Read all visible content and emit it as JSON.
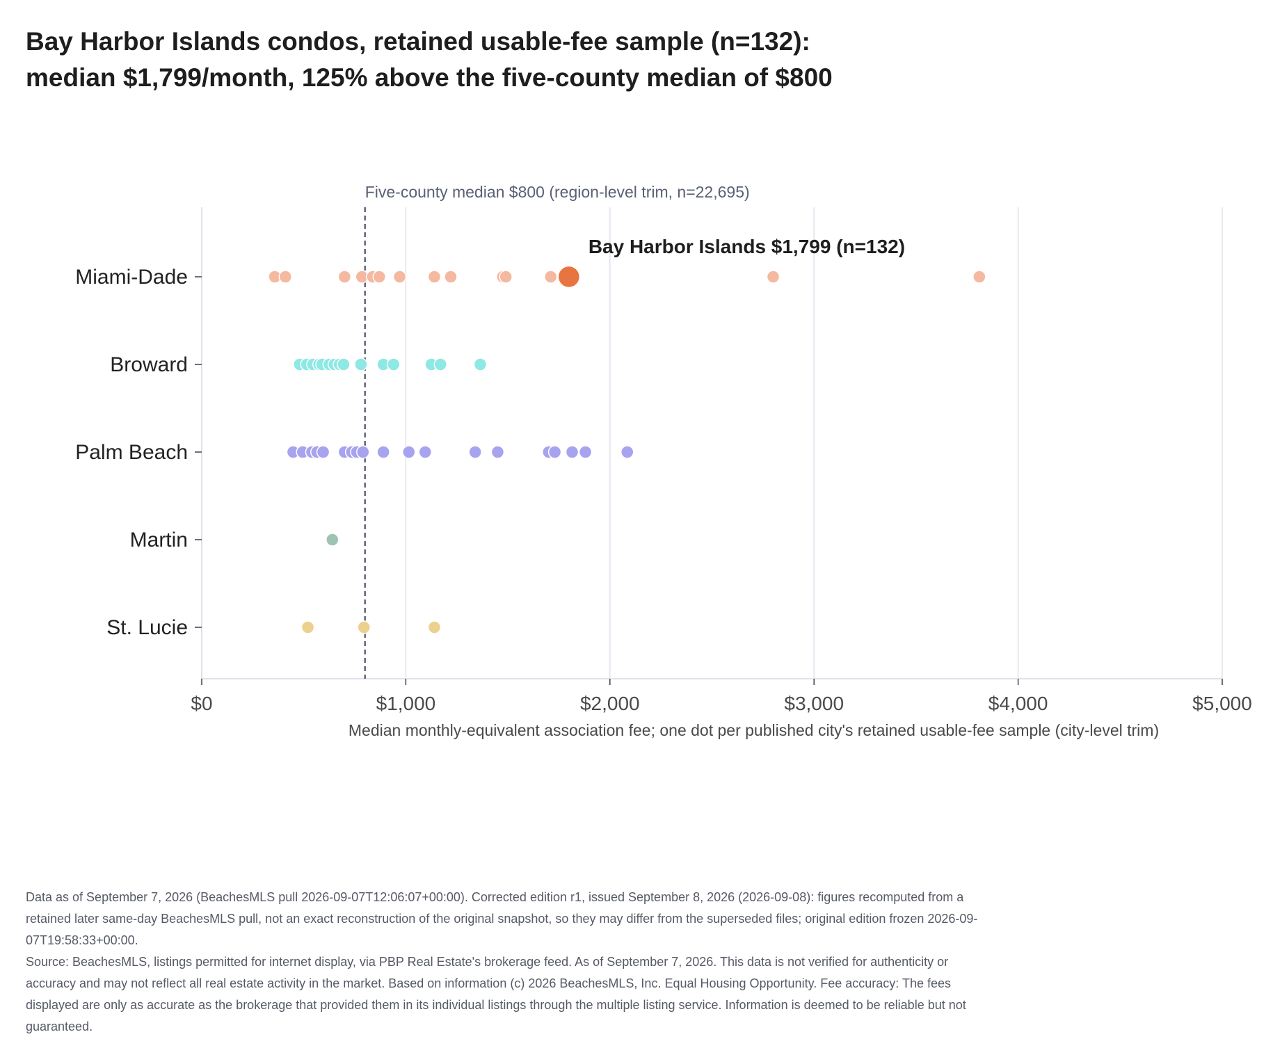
{
  "title": {
    "line1": "Bay Harbor Islands condos, retained usable-fee sample (n=132):",
    "line2": "median $1,799/month, 125% above the five-county median of $800"
  },
  "chart_data": {
    "type": "scatter",
    "orientation": "horizontal-strip",
    "xlabel": "Median monthly-equivalent association fee; one dot per published city's retained usable-fee sample (city-level trim)",
    "ylabel": "",
    "xlim": [
      0,
      5000
    ],
    "x_ticks": [
      0,
      1000,
      2000,
      3000,
      4000,
      5000
    ],
    "x_tick_labels": [
      "$0",
      "$1,000",
      "$2,000",
      "$3,000",
      "$4,000",
      "$5,000"
    ],
    "grid": "vertical",
    "categories": [
      "Miami-Dade",
      "Broward",
      "Palm Beach",
      "Martin",
      "St. Lucie"
    ],
    "series": [
      {
        "name": "Miami-Dade",
        "color": "#f4b9a0",
        "values": [
          358,
          410,
          700,
          785,
          838,
          870,
          970,
          1140,
          1220,
          1475,
          1490,
          1710,
          2800,
          3810
        ]
      },
      {
        "name": "Broward",
        "color": "#8ee8e4",
        "values": [
          480,
          515,
          545,
          575,
          590,
          625,
          650,
          675,
          695,
          780,
          890,
          940,
          1125,
          1170,
          1365
        ]
      },
      {
        "name": "Palm Beach",
        "color": "#a7a3ef",
        "values": [
          448,
          495,
          540,
          565,
          595,
          700,
          735,
          760,
          790,
          890,
          1015,
          1095,
          1340,
          1450,
          1700,
          1730,
          1815,
          1880,
          2085
        ]
      },
      {
        "name": "Martin",
        "color": "#9fc3b3",
        "values": [
          640
        ]
      },
      {
        "name": "St. Lucie",
        "color": "#ecd08e",
        "values": [
          520,
          795,
          1140
        ]
      }
    ],
    "highlight": {
      "category": "Miami-Dade",
      "value": 1799,
      "label": "Bay Harbor Islands $1,799 (n=132)",
      "color": "#e87440"
    },
    "reference_line": {
      "value": 800,
      "label": "Five-county median $800 (region-level trim, n=22,695)",
      "style": "dashed"
    }
  },
  "notes": {
    "line1": "Data as of September 7, 2026 (BeachesMLS pull 2026-09-07T12:06:07+00:00). Corrected edition r1, issued September 8, 2026 (2026-09-08): figures recomputed from a retained later same-day BeachesMLS pull, not an exact reconstruction of the original snapshot, so they may differ from the superseded files; original edition frozen 2026-09-07T19:58:33+00:00.",
    "line2": "Source: BeachesMLS, listings permitted for internet display, via PBP Real Estate's brokerage feed. As of September 7, 2026. This data is not verified for authenticity or accuracy and may not reflect all real estate activity in the market. Based on information (c) 2026 BeachesMLS, Inc. Equal Housing Opportunity. Fee accuracy: The fees displayed are only as accurate as the brokerage that provided them in its individual listings through the multiple listing service. Information is deemed to be reliable but not guaranteed."
  }
}
